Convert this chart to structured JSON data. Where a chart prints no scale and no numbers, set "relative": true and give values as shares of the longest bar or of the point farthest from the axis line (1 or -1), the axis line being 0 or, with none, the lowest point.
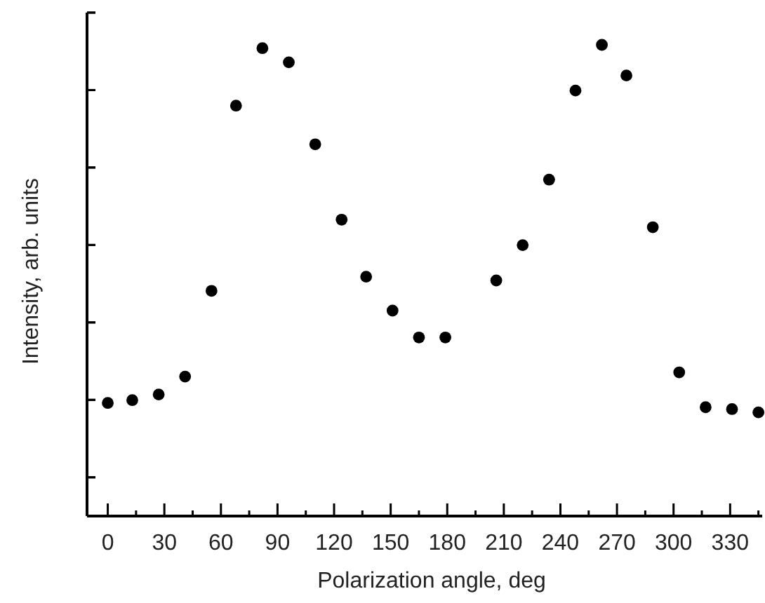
{
  "chart_data": {
    "type": "scatter",
    "xlabel": "Polarization angle, deg",
    "ylabel": "Intensity, arb. units",
    "relative": true,
    "marker": "circle",
    "color": "#000000",
    "x": [
      0,
      13,
      27,
      41,
      55,
      68,
      82,
      96,
      110,
      124,
      137,
      151,
      165,
      179,
      206,
      220,
      234,
      248,
      262,
      275,
      289,
      303,
      317,
      331,
      345
    ],
    "values": [
      0.24,
      0.246,
      0.258,
      0.296,
      0.478,
      0.871,
      0.993,
      0.963,
      0.789,
      0.629,
      0.508,
      0.436,
      0.379,
      0.379,
      0.5,
      0.575,
      0.714,
      0.903,
      1,
      0.935,
      0.613,
      0.305,
      0.231,
      0.227,
      0.22
    ],
    "xlim": [
      -11,
      347
    ],
    "xticks": [
      0,
      {
        "value": 15,
        "label": null
      },
      30,
      {
        "value": 45,
        "label": null
      },
      60,
      {
        "value": 75,
        "label": null
      },
      90,
      {
        "value": 105,
        "label": null
      },
      120,
      {
        "value": 135,
        "label": null
      },
      150,
      {
        "value": 165,
        "label": null
      },
      180,
      {
        "value": 195,
        "label": null
      },
      210,
      {
        "value": 225,
        "label": null
      },
      240,
      {
        "value": 255,
        "label": null
      },
      270,
      {
        "value": 285,
        "label": null
      },
      300,
      {
        "value": 315,
        "label": null
      },
      330,
      {
        "value": 345,
        "label": null
      }
    ]
  }
}
